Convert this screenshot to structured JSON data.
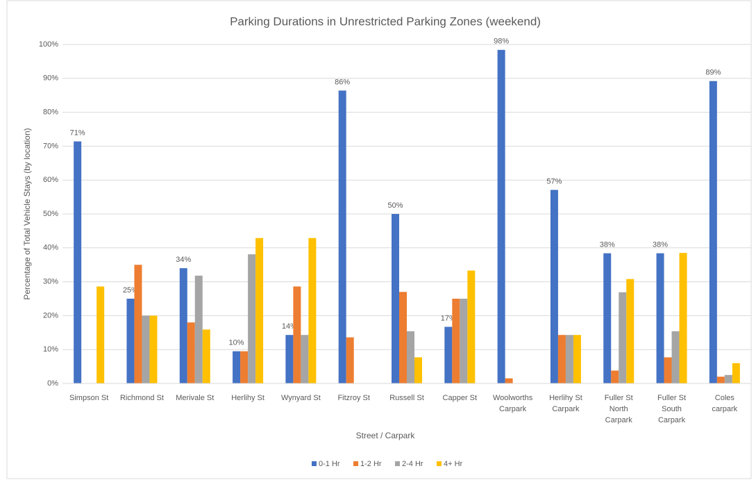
{
  "chart_data": {
    "type": "bar",
    "title": "Parking Durations in Unrestricted Parking Zones (weekend)",
    "x_label": "Street / Carpark",
    "y_label": "Percentage of Total Vehicle Stays (by location)",
    "categories": [
      "Simpson St",
      "Richmond St",
      "Merivale St",
      "Herlihy St",
      "Wynyard St",
      "Fitzroy St",
      "Russell St",
      "Capper St",
      "Woolworths Carpark",
      "Herlihy St Carpark",
      "Fuller St North Carpark",
      "Fuller St South Carpark",
      "Coles carpark"
    ],
    "series": [
      {
        "name": "0-1 Hr",
        "color": "#4472c4",
        "values": [
          71.4,
          25,
          34,
          9.5,
          14.3,
          86.4,
          50,
          16.7,
          98.4,
          57.1,
          38.4,
          38.4,
          89.2
        ],
        "value_labels": [
          "71%",
          "25%",
          "34%",
          "10%",
          "14%",
          "86%",
          "50%",
          "17%",
          "98%",
          "57%",
          "38%",
          "38%",
          "89%"
        ]
      },
      {
        "name": "1-2 Hr",
        "color": "#ed7d31",
        "values": [
          0,
          35,
          18,
          9.5,
          28.6,
          13.6,
          27,
          25,
          1.5,
          14.3,
          3.8,
          7.7,
          2
        ]
      },
      {
        "name": "2-4 Hr",
        "color": "#a5a5a5",
        "values": [
          0,
          20,
          31.8,
          38.1,
          14.3,
          0,
          15.4,
          25,
          0,
          14.3,
          26.9,
          15.4,
          2.5
        ]
      },
      {
        "name": "4+ Hr",
        "color": "#ffc000",
        "values": [
          28.6,
          20,
          15.9,
          42.9,
          42.9,
          0,
          7.7,
          33.3,
          0,
          14.3,
          30.8,
          38.5,
          6
        ]
      }
    ],
    "ylim": [
      0,
      100
    ],
    "yticks": [
      {
        "value": 0,
        "label": "0%"
      },
      {
        "value": 10,
        "label": "10%"
      },
      {
        "value": 20,
        "label": "20%"
      },
      {
        "value": 30,
        "label": "30%"
      },
      {
        "value": 40,
        "label": "40%"
      },
      {
        "value": 50,
        "label": "50%"
      },
      {
        "value": 60,
        "label": "60%"
      },
      {
        "value": 70,
        "label": "70%"
      },
      {
        "value": 80,
        "label": "80%"
      },
      {
        "value": 90,
        "label": "90%"
      },
      {
        "value": 100,
        "label": "100%"
      }
    ],
    "grid": true,
    "legend": "bottom"
  }
}
